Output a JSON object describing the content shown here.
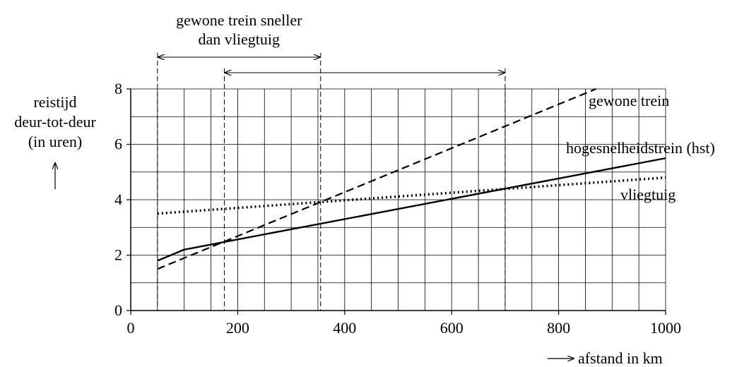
{
  "chart_data": {
    "type": "line",
    "ylabel_lines": [
      "reistijd",
      "deur-tot-deur",
      "(in uren)"
    ],
    "xlabel": "afstand in km",
    "xlim": [
      0,
      1000
    ],
    "ylim": [
      0,
      8
    ],
    "x_ticks": [
      0,
      200,
      400,
      600,
      800,
      1000
    ],
    "y_ticks": [
      0,
      2,
      4,
      6,
      8
    ],
    "grid": true,
    "series": [
      {
        "name": "gewone trein",
        "style": "dashed",
        "color": "#000000",
        "x": [
          50,
          870
        ],
        "y": [
          1.5,
          8.0
        ]
      },
      {
        "name": "hogesnelheidstrein (hst)",
        "style": "solid",
        "color": "#000000",
        "x": [
          50,
          100,
          1000
        ],
        "y": [
          1.8,
          2.2,
          5.5
        ]
      },
      {
        "name": "vliegtuig",
        "style": "dotted",
        "color": "#000000",
        "x": [
          50,
          1000
        ],
        "y": [
          3.5,
          4.8
        ]
      }
    ],
    "annotations": [
      {
        "text_lines": [
          "gewone trein sneller",
          "dan vliegtuig"
        ],
        "from_x": 50,
        "to_x": 355
      },
      {
        "text_lines": [],
        "from_x": 175,
        "to_x": 700
      }
    ]
  }
}
